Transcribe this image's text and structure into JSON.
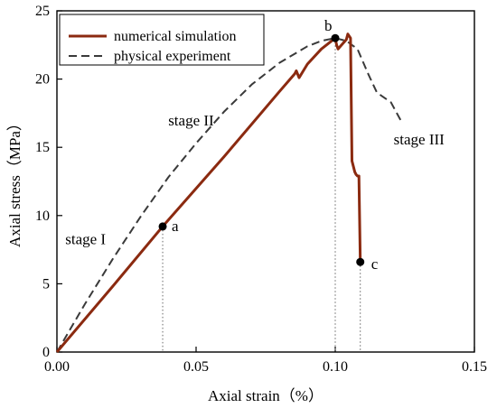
{
  "chart_data": {
    "type": "line",
    "xlabel": "Axial strain（%）",
    "ylabel": "Axial stress（MPa）",
    "xlim": [
      0,
      0.15
    ],
    "ylim": [
      0,
      25
    ],
    "x_ticks": [
      "0.00",
      "0.05",
      "0.10",
      "0.15"
    ],
    "y_ticks": [
      "0",
      "5",
      "10",
      "15",
      "20",
      "25"
    ],
    "grid": false,
    "legend_position": "top-left",
    "series": [
      {
        "name": "numerical simulation",
        "color": "#8b2a10",
        "style": "solid",
        "x": [
          0.0,
          0.02,
          0.038,
          0.06,
          0.08,
          0.0855,
          0.086,
          0.087,
          0.09,
          0.095,
          0.1,
          0.1005,
          0.101,
          0.104,
          0.1045,
          0.1055,
          0.106,
          0.107,
          0.1075,
          0.108,
          0.1085,
          0.109
        ],
        "y": [
          0.0,
          4.8,
          9.2,
          14.3,
          19.1,
          20.4,
          20.6,
          20.1,
          21.1,
          22.2,
          23.0,
          22.5,
          22.2,
          22.9,
          23.3,
          23.0,
          14.0,
          13.2,
          13.0,
          12.9,
          12.9,
          6.6
        ]
      },
      {
        "name": "physical experiment",
        "color": "#3a3a3a",
        "style": "dashed",
        "x": [
          0.0,
          0.01,
          0.02,
          0.03,
          0.04,
          0.05,
          0.06,
          0.07,
          0.08,
          0.09,
          0.095,
          0.1,
          0.104,
          0.108,
          0.112,
          0.115,
          0.12,
          0.124
        ],
        "y": [
          0.0,
          3.5,
          6.8,
          9.9,
          12.8,
          15.3,
          17.6,
          19.6,
          21.2,
          22.4,
          22.8,
          23.0,
          22.8,
          22.2,
          20.3,
          19.0,
          18.3,
          16.8
        ]
      }
    ],
    "points": [
      {
        "label": "a",
        "x": 0.038,
        "y": 9.2,
        "label_dx": 10,
        "label_dy": 5
      },
      {
        "label": "b",
        "x": 0.1,
        "y": 23.0,
        "label_dx": -12,
        "label_dy": -8
      },
      {
        "label": "c",
        "x": 0.109,
        "y": 6.6,
        "label_dx": 12,
        "label_dy": 8
      }
    ],
    "stage_labels": [
      {
        "text": "stage I",
        "x": 0.003,
        "y": 7.9
      },
      {
        "text": "stage II",
        "x": 0.04,
        "y": 16.6
      },
      {
        "text": "stage III",
        "x": 0.121,
        "y": 15.2
      }
    ]
  }
}
